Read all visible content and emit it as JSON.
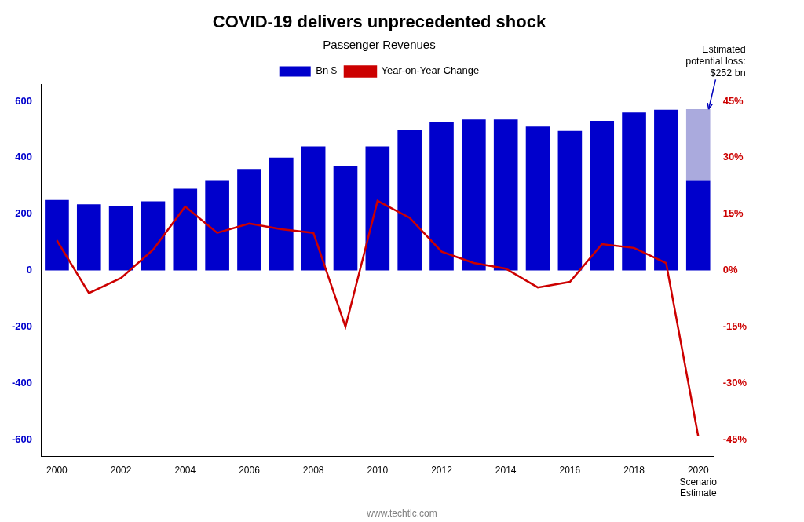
{
  "chart_data": {
    "type": "bar",
    "title": "COVID-19 delivers unprecedented shock",
    "subtitle": "Passenger Revenues",
    "categories": [
      "2000",
      null,
      "2002",
      null,
      "2004",
      null,
      "2006",
      null,
      "2008",
      null,
      "2010",
      null,
      "2012",
      null,
      "2014",
      null,
      "2016",
      null,
      "2018",
      null,
      "2020\nScenario\nEstimate"
    ],
    "series": [
      {
        "name": "Bn $",
        "color": "#0000CC",
        "values": [
          250,
          235,
          230,
          245,
          290,
          320,
          360,
          400,
          440,
          370,
          440,
          500,
          525,
          535,
          535,
          510,
          495,
          530,
          560,
          570,
          320
        ]
      },
      {
        "color": "#aaaadd",
        "values": [
          0,
          0,
          0,
          0,
          0,
          0,
          0,
          0,
          0,
          0,
          0,
          0,
          0,
          0,
          0,
          0,
          0,
          0,
          0,
          0,
          252
        ]
      },
      {
        "name": "Year-on-Year Change",
        "type": "line",
        "axis": "y2",
        "color": "#CC0000",
        "values": [
          8.0,
          -6.0,
          -2.0,
          5.5,
          17.0,
          10.0,
          12.5,
          11.0,
          10.0,
          -15.0,
          18.5,
          14.0,
          5.0,
          2.0,
          0.5,
          -4.5,
          -3.0,
          7.0,
          6.0,
          2.0,
          -44.0
        ]
      }
    ],
    "stacked": true,
    "ylim": [
      -660,
      660
    ],
    "yticks": [
      -600,
      -400,
      -200,
      0,
      200,
      400,
      600
    ],
    "y2lim": [
      -49.5,
      49.5
    ],
    "y2ticks": [
      {
        "value": -45,
        "label": "-45%"
      },
      {
        "value": -30,
        "label": "-30%"
      },
      {
        "value": -15,
        "label": "-15%"
      },
      {
        "value": 0,
        "label": "0%"
      },
      {
        "value": 15,
        "label": "15%"
      },
      {
        "value": 30,
        "label": "30%"
      },
      {
        "value": 45,
        "label": "45%"
      }
    ],
    "grid": false,
    "legend": "top",
    "annotations": [
      {
        "text": "Estimated\npotential loss:\n$252 bn"
      }
    ],
    "caption": "www.techtlc.com"
  }
}
